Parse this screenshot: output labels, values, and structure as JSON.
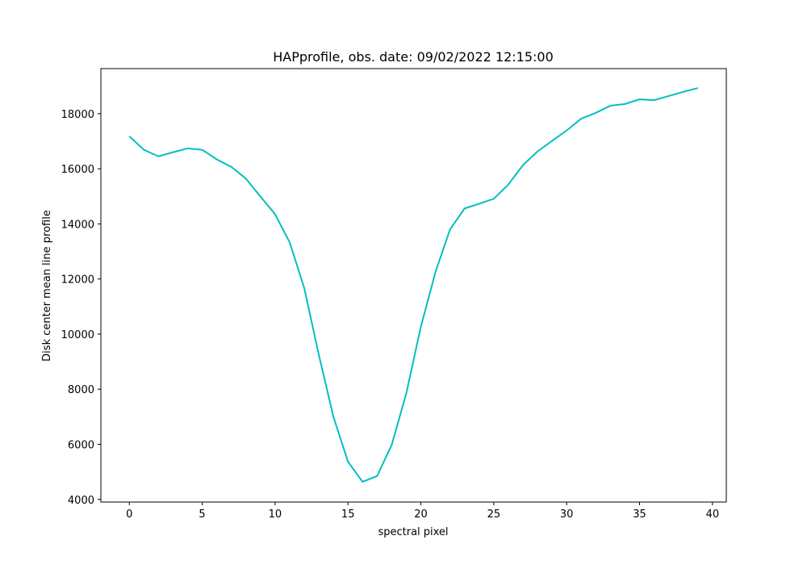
{
  "chart_data": {
    "type": "line",
    "title": "HAPprofile, obs. date: 09/02/2022 12:15:00",
    "xlabel": "spectral pixel",
    "ylabel": "Disk center mean line profile",
    "x": [
      0,
      1,
      2,
      3,
      4,
      5,
      6,
      7,
      8,
      9,
      10,
      11,
      12,
      13,
      14,
      15,
      16,
      17,
      18,
      19,
      20,
      21,
      22,
      23,
      24,
      25,
      26,
      27,
      28,
      29,
      30,
      31,
      32,
      33,
      34,
      35,
      36,
      37,
      38,
      39
    ],
    "series": [
      {
        "color": "#00bfbf",
        "values": [
          17180,
          16690,
          16450,
          16600,
          16740,
          16690,
          16340,
          16070,
          15640,
          14990,
          14350,
          13330,
          11670,
          9250,
          7000,
          5370,
          4640,
          4850,
          5980,
          7850,
          10270,
          12250,
          13800,
          14560,
          14730,
          14910,
          15430,
          16130,
          16630,
          17010,
          17390,
          17820,
          18030,
          18290,
          18350,
          18520,
          18490,
          18640,
          18790,
          18930
        ]
      }
    ],
    "xlim": [
      -1.95,
      40.95
    ],
    "ylim": [
      3905,
      19635
    ],
    "xticks": [
      0,
      5,
      10,
      15,
      20,
      25,
      30,
      35,
      40
    ],
    "yticks": [
      4000,
      6000,
      8000,
      10000,
      12000,
      14000,
      16000,
      18000
    ]
  }
}
